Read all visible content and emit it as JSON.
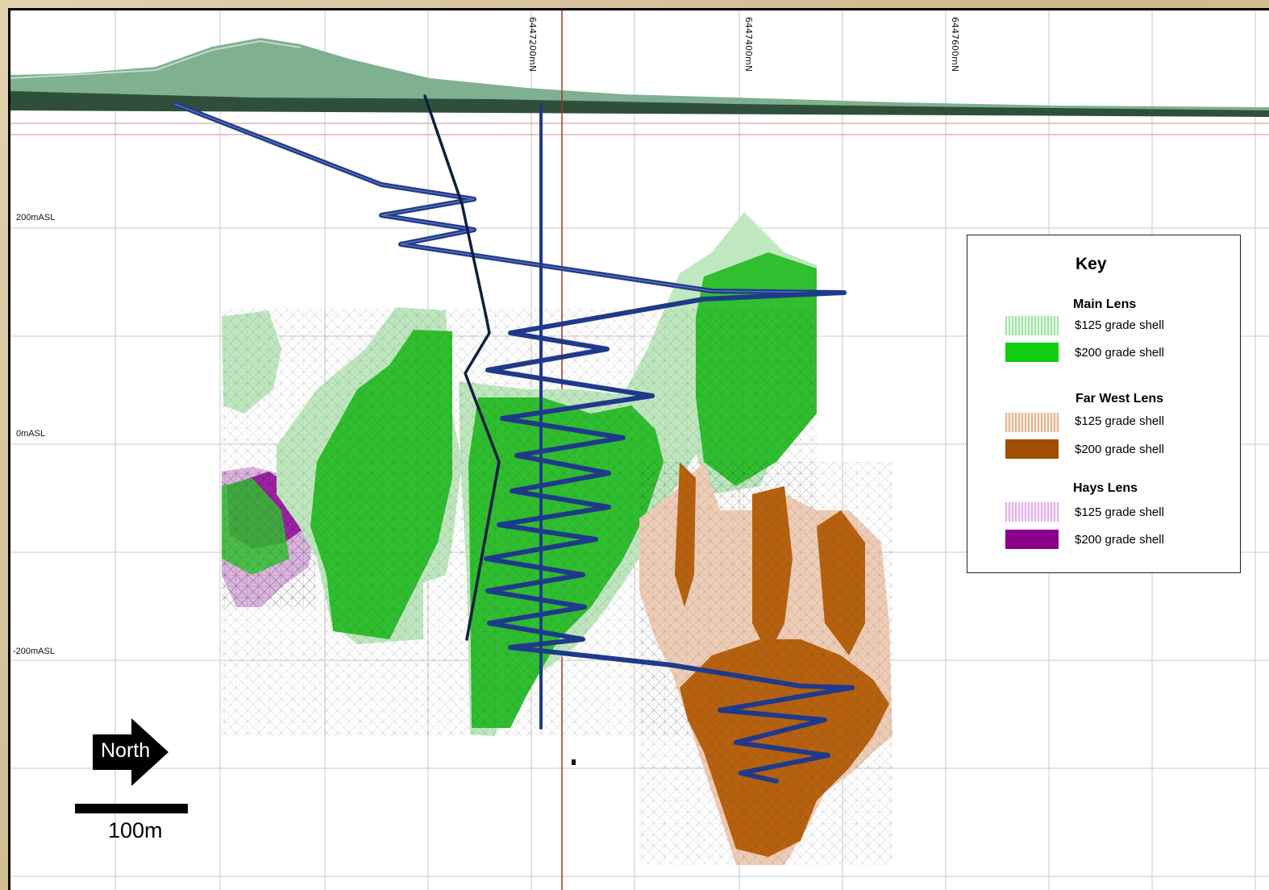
{
  "northing_labels": [
    "6447200mN",
    "6447400mN",
    "6447600mN"
  ],
  "elevation_labels": [
    "200mASL",
    "0mASL",
    "-200mASL"
  ],
  "key": {
    "title": "Key",
    "groups": [
      {
        "name": "Main Lens",
        "items": [
          "$125 grade shell",
          "$200 grade shell"
        ],
        "colors": [
          "#9fe59f",
          "#11cc11"
        ]
      },
      {
        "name": "Far West Lens",
        "items": [
          "$125 grade shell",
          "$200 grade shell"
        ],
        "colors": [
          "#e2b590",
          "#a04e00"
        ]
      },
      {
        "name": "Hays Lens",
        "items": [
          "$125 grade shell",
          "$200 grade shell"
        ],
        "colors": [
          "#e1b2e6",
          "#8b008b"
        ]
      }
    ]
  },
  "north_arrow": {
    "label": "North",
    "icon": "right-arrow-icon"
  },
  "scale_bar": {
    "label": "100m"
  },
  "colors": {
    "main_200": "#2fbf2f",
    "main_125": "#bfe8bf",
    "farwest_200": "#b8620f",
    "farwest_125": "#efcdb6",
    "hays_200": "#a020a8",
    "hays_125": "#dcb4e0",
    "decline": "#1f3a8a",
    "topography": "#2f4f3a"
  }
}
